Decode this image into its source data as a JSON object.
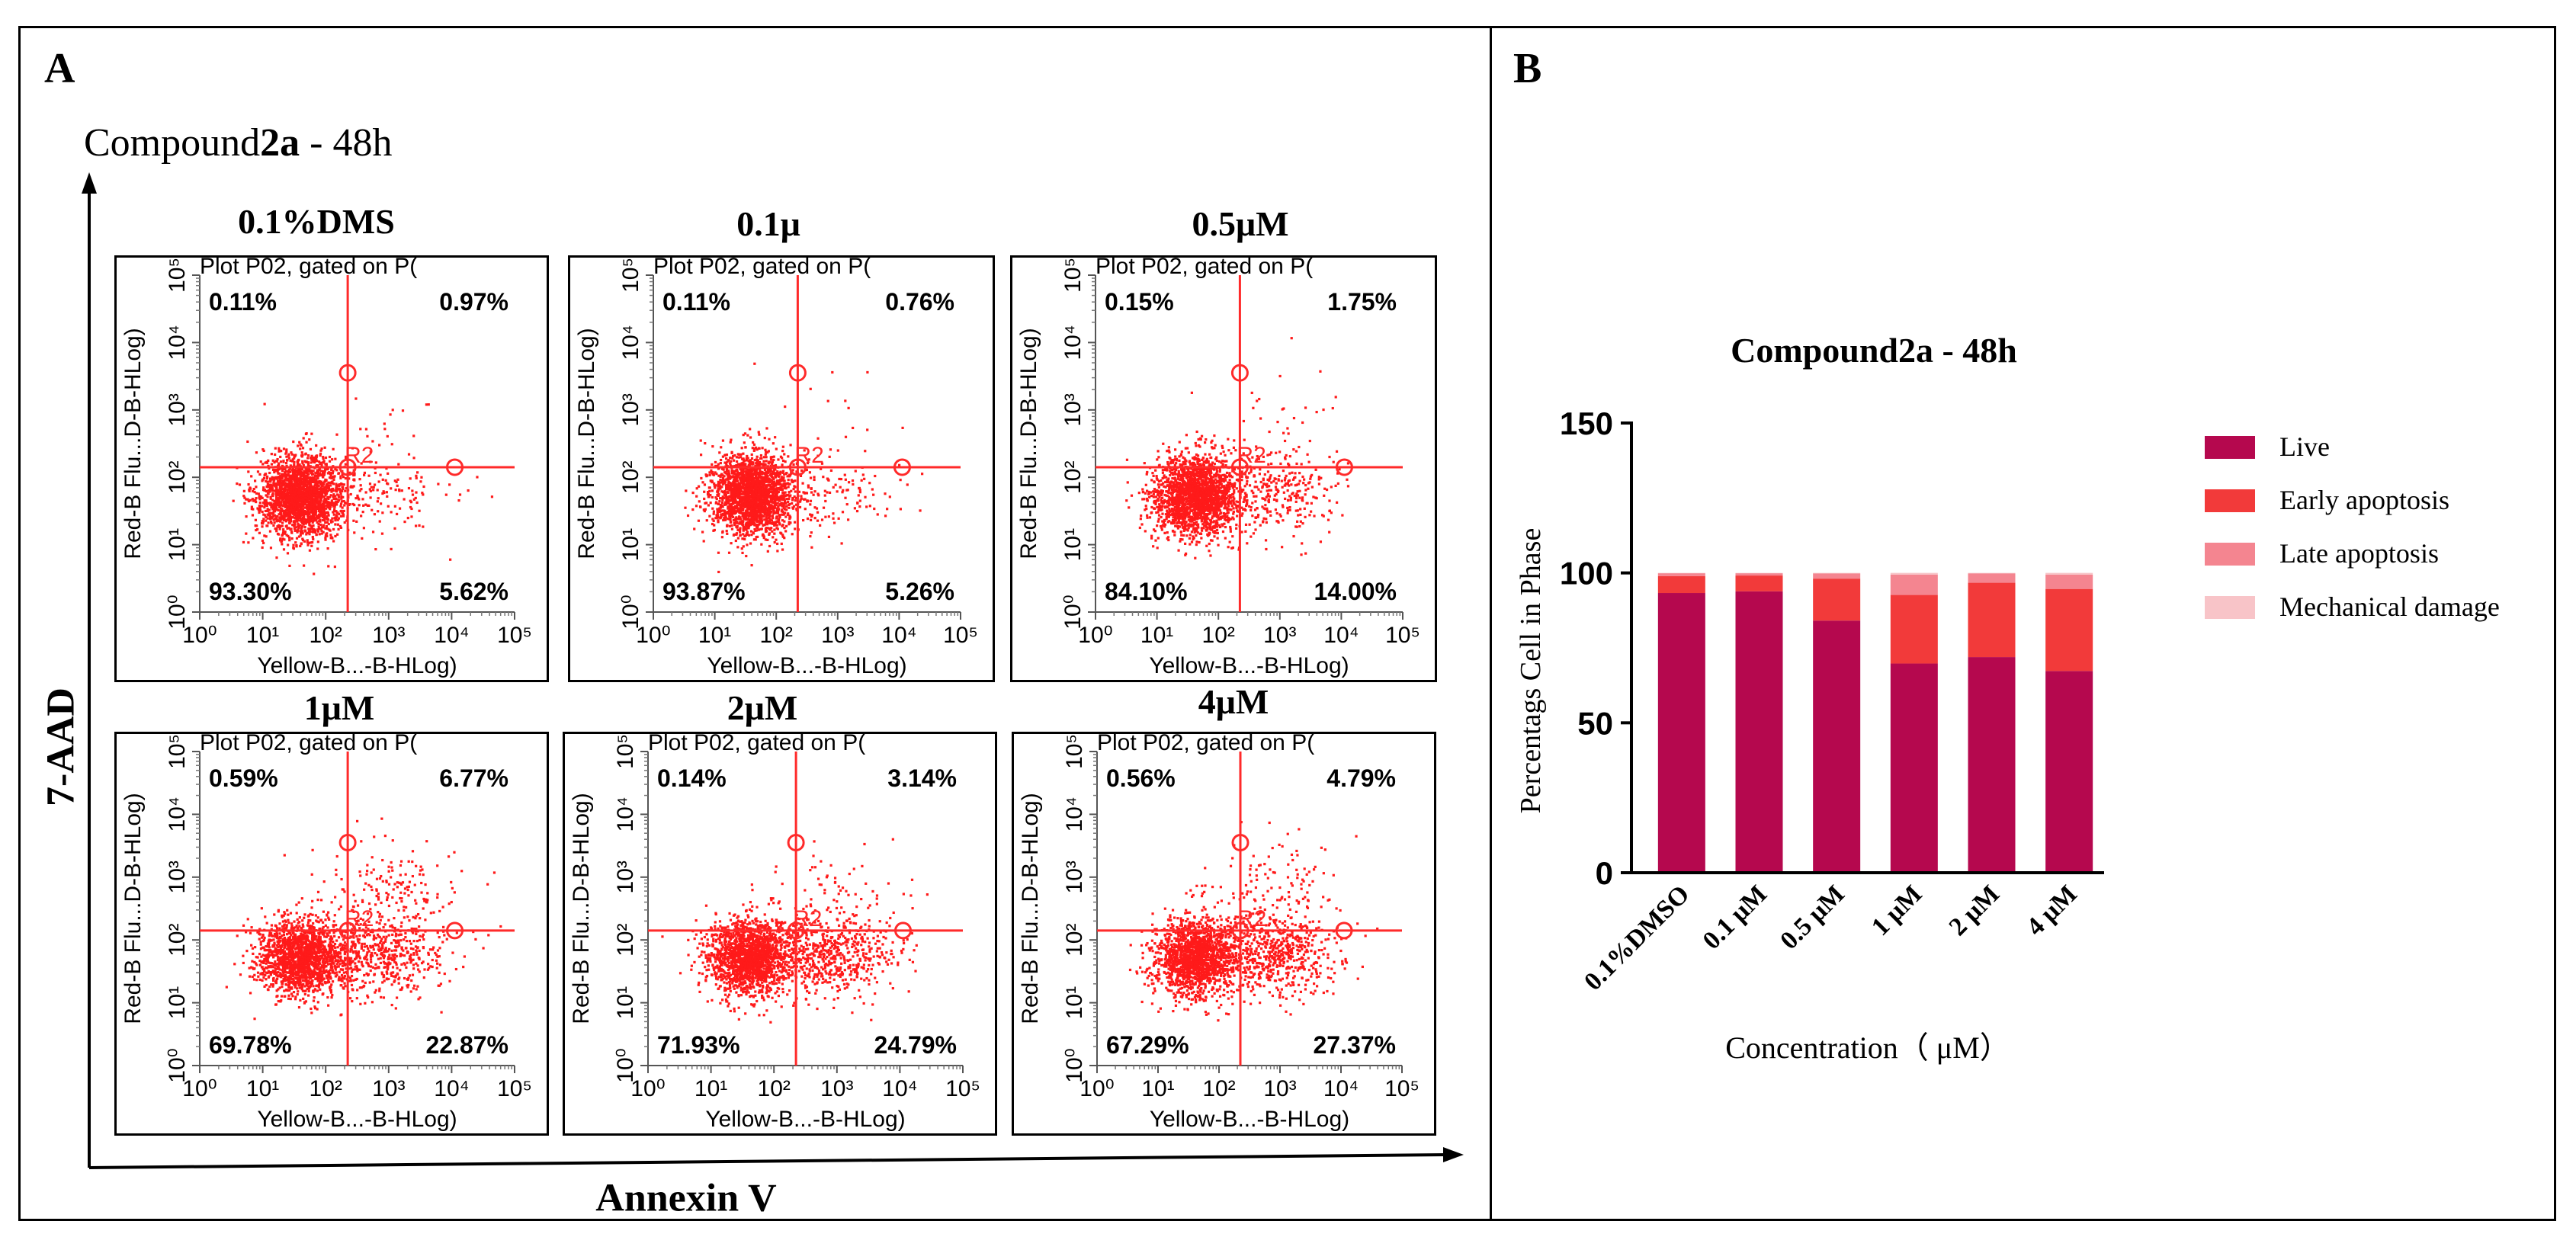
{
  "panel_a": {
    "label": "A",
    "title_pre": "Compound",
    "title_bold": "2a",
    "title_post": " - 48h",
    "y_label": "7-AAD",
    "x_label": "Annexin V"
  },
  "panel_b": {
    "label": "B"
  },
  "chart_data": [
    {
      "type": "scatter",
      "title": "0.1%DMS",
      "plot_header": "Plot P02, gated on P(",
      "xlabel": "Yellow-B...-B-HLog)",
      "ylabel": "Red-B Flu...D-B-HLog)",
      "gate_label": "R2",
      "x_ticks": [
        "10⁰",
        "10¹",
        "10²",
        "10³",
        "10⁴",
        "10⁵"
      ],
      "y_ticks": [
        "10⁰",
        "10¹",
        "10²",
        "10³",
        "10⁴",
        "10⁵"
      ],
      "xlim": [
        0,
        5
      ],
      "ylim": [
        0,
        5
      ],
      "quadrants": {
        "upper_left": "0.11%",
        "upper_right": "0.97%",
        "lower_left": "93.30%",
        "lower_right": "5.62%"
      }
    },
    {
      "type": "scatter",
      "title": "0.1μ",
      "plot_header": "Plot P02, gated on P(",
      "xlabel": "Yellow-B...-B-HLog)",
      "ylabel": "Red-B Flu...D-B-HLog)",
      "gate_label": "R2",
      "x_ticks": [
        "10⁰",
        "10¹",
        "10²",
        "10³",
        "10⁴",
        "10⁵"
      ],
      "y_ticks": [
        "10⁰",
        "10¹",
        "10²",
        "10³",
        "10⁴",
        "10⁵"
      ],
      "xlim": [
        0,
        5
      ],
      "ylim": [
        0,
        5
      ],
      "quadrants": {
        "upper_left": "0.11%",
        "upper_right": "0.76%",
        "lower_left": "93.87%",
        "lower_right": "5.26%"
      }
    },
    {
      "type": "scatter",
      "title": "0.5μM",
      "plot_header": "Plot P02, gated on P(",
      "xlabel": "Yellow-B...-B-HLog)",
      "ylabel": "Red-B Flu...D-B-HLog)",
      "gate_label": "R2",
      "x_ticks": [
        "10⁰",
        "10¹",
        "10²",
        "10³",
        "10⁴",
        "10⁵"
      ],
      "y_ticks": [
        "10⁰",
        "10¹",
        "10²",
        "10³",
        "10⁴",
        "10⁵"
      ],
      "xlim": [
        0,
        5
      ],
      "ylim": [
        0,
        5
      ],
      "quadrants": {
        "upper_left": "0.15%",
        "upper_right": "1.75%",
        "lower_left": "84.10%",
        "lower_right": "14.00%"
      }
    },
    {
      "type": "scatter",
      "title": "1μM",
      "plot_header": "Plot P02, gated on P(",
      "xlabel": "Yellow-B...-B-HLog)",
      "ylabel": "Red-B Flu...D-B-HLog)",
      "gate_label": "R2",
      "x_ticks": [
        "10⁰",
        "10¹",
        "10²",
        "10³",
        "10⁴",
        "10⁵"
      ],
      "y_ticks": [
        "10⁰",
        "10¹",
        "10²",
        "10³",
        "10⁴",
        "10⁵"
      ],
      "xlim": [
        0,
        5
      ],
      "ylim": [
        0,
        5
      ],
      "quadrants": {
        "upper_left": "0.59%",
        "upper_right": "6.77%",
        "lower_left": "69.78%",
        "lower_right": "22.87%"
      }
    },
    {
      "type": "scatter",
      "title": "2μM",
      "plot_header": "Plot P02, gated on P(",
      "xlabel": "Yellow-B...-B-HLog)",
      "ylabel": "Red-B Flu...D-B-HLog)",
      "gate_label": "R2",
      "x_ticks": [
        "10⁰",
        "10¹",
        "10²",
        "10³",
        "10⁴",
        "10⁵"
      ],
      "y_ticks": [
        "10⁰",
        "10¹",
        "10²",
        "10³",
        "10⁴",
        "10⁵"
      ],
      "xlim": [
        0,
        5
      ],
      "ylim": [
        0,
        5
      ],
      "quadrants": {
        "upper_left": "0.14%",
        "upper_right": "3.14%",
        "lower_left": "71.93%",
        "lower_right": "24.79%"
      }
    },
    {
      "type": "scatter",
      "title": "4μM",
      "plot_header": "Plot P02, gated on P(",
      "xlabel": "Yellow-B...-B-HLog)",
      "ylabel": "Red-B Flu...D-B-HLog)",
      "gate_label": "R2",
      "x_ticks": [
        "10⁰",
        "10¹",
        "10²",
        "10³",
        "10⁴",
        "10⁵"
      ],
      "y_ticks": [
        "10⁰",
        "10¹",
        "10²",
        "10³",
        "10⁴",
        "10⁵"
      ],
      "xlim": [
        0,
        5
      ],
      "ylim": [
        0,
        5
      ],
      "quadrants": {
        "upper_left": "0.56%",
        "upper_right": "4.79%",
        "lower_left": "67.29%",
        "lower_right": "27.37%"
      }
    },
    {
      "type": "bar",
      "stacked": true,
      "title": "Compound2a - 48h",
      "xlabel": "Concentration（ μM）",
      "ylabel": "Percentags Cell in Phase",
      "ylim": [
        0,
        150
      ],
      "yticks": [
        0,
        50,
        100,
        150
      ],
      "categories": [
        "0.1%DMSO",
        "0.1 μM",
        "0.5 μM",
        "1 μM",
        "2 μM",
        "4 μM"
      ],
      "legend_position": "right",
      "series": [
        {
          "name": "Live",
          "color": "#b5084e",
          "values": [
            93.3,
            93.87,
            84.1,
            69.78,
            71.93,
            67.29
          ]
        },
        {
          "name": "Early apoptosis",
          "color": "#f23a3a",
          "values": [
            5.62,
            5.26,
            14.0,
            22.87,
            24.79,
            27.37
          ]
        },
        {
          "name": "Late apoptosis",
          "color": "#f48590",
          "values": [
            0.97,
            0.76,
            1.75,
            6.77,
            3.14,
            4.79
          ]
        },
        {
          "name": "Mechanical damage",
          "color": "#f8c4c8",
          "values": [
            0.11,
            0.11,
            0.15,
            0.59,
            0.14,
            0.56
          ]
        }
      ]
    }
  ]
}
